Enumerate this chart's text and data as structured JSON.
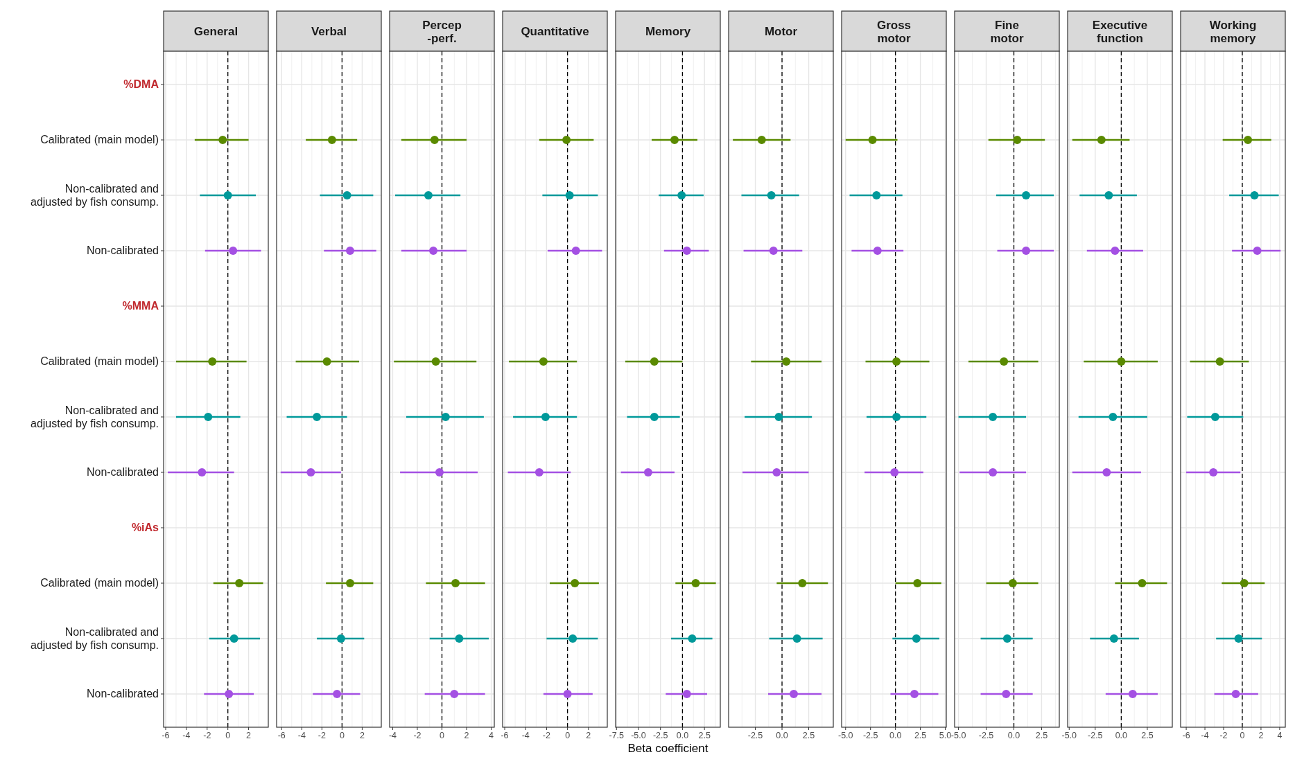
{
  "chart_data": [
    {
      "type": "scatter",
      "orientation": "horizontal",
      "title": "General",
      "categories": [
        "%DMA",
        "Calibrated (main model)",
        "Non-calibrated and\nadjusted by fish consump.",
        "Non-calibrated",
        "%MMA",
        "Calibrated (main model)",
        "Non-calibrated and\nadjusted by fish consump.",
        "Non-calibrated",
        "%iAs",
        "Calibrated (main model)",
        "Non-calibrated and\nadjusted by fish consump.",
        "Non-calibrated"
      ],
      "xlim": [
        -6.2,
        3.9
      ],
      "xticks": [
        -6,
        -4,
        -2,
        0,
        2
      ],
      "grid": true,
      "marker": "circle",
      "ref_lines": [
        {
          "axis": "x",
          "value": 0,
          "line_style": "dashed"
        }
      ],
      "series": [
        {
          "color": "#5a8a00",
          "values": [
            null,
            -0.5,
            null,
            null,
            null,
            -1.5,
            null,
            null,
            null,
            1.1,
            null,
            null
          ],
          "errors": [
            null,
            [
              -3.2,
              2.0
            ],
            null,
            null,
            null,
            [
              -5.0,
              1.8
            ],
            null,
            null,
            null,
            [
              -1.4,
              3.4
            ],
            null,
            null
          ]
        },
        {
          "color": "#00999a",
          "values": [
            null,
            null,
            0.0,
            null,
            null,
            null,
            -1.9,
            null,
            null,
            null,
            0.6,
            null
          ],
          "errors": [
            null,
            null,
            [
              -2.7,
              2.7
            ],
            null,
            null,
            null,
            [
              -5.0,
              1.2
            ],
            null,
            null,
            null,
            [
              -1.8,
              3.1
            ],
            null
          ]
        },
        {
          "color": "#a450e3",
          "values": [
            null,
            null,
            null,
            0.5,
            null,
            null,
            null,
            -2.5,
            null,
            null,
            null,
            0.1
          ],
          "errors": [
            null,
            null,
            null,
            [
              -2.2,
              3.2
            ],
            null,
            null,
            null,
            [
              -5.8,
              0.6
            ],
            null,
            null,
            null,
            [
              -2.3,
              2.5
            ]
          ]
        }
      ]
    },
    {
      "type": "scatter",
      "orientation": "horizontal",
      "title": "Verbal",
      "tick_labels": "x",
      "xlim": [
        -6.5,
        3.9
      ],
      "xticks": [
        -6,
        -4,
        -2,
        0,
        2
      ],
      "grid": true,
      "marker": "circle",
      "ref_lines": [
        {
          "axis": "x",
          "value": 0,
          "line_style": "dashed"
        }
      ],
      "series": [
        {
          "color": "#5a8a00",
          "values": [
            null,
            -1.0,
            null,
            null,
            null,
            -1.5,
            null,
            null,
            null,
            0.8,
            null,
            null
          ],
          "errors": [
            null,
            [
              -3.6,
              1.5
            ],
            null,
            null,
            null,
            [
              -4.6,
              1.7
            ],
            null,
            null,
            null,
            [
              -1.6,
              3.1
            ],
            null,
            null
          ]
        },
        {
          "color": "#00999a",
          "values": [
            null,
            null,
            0.5,
            null,
            null,
            null,
            -2.5,
            null,
            null,
            null,
            -0.1,
            null
          ],
          "errors": [
            null,
            null,
            [
              -2.2,
              3.1
            ],
            null,
            null,
            null,
            [
              -5.5,
              0.5
            ],
            null,
            null,
            null,
            [
              -2.5,
              2.2
            ],
            null
          ]
        },
        {
          "color": "#a450e3",
          "values": [
            null,
            null,
            null,
            0.8,
            null,
            null,
            null,
            -3.1,
            null,
            null,
            null,
            -0.5
          ],
          "errors": [
            null,
            null,
            null,
            [
              -1.8,
              3.4
            ],
            null,
            null,
            null,
            [
              -6.1,
              -0.1
            ],
            null,
            null,
            null,
            [
              -2.9,
              1.8
            ]
          ]
        }
      ]
    },
    {
      "type": "scatter",
      "orientation": "horizontal",
      "title": "Percep\n-perf.",
      "tick_labels": "x",
      "xlim": [
        -4.25,
        4.25
      ],
      "xticks": [
        -4,
        -2,
        0,
        2,
        4
      ],
      "grid": true,
      "marker": "circle",
      "ref_lines": [
        {
          "axis": "x",
          "value": 0,
          "line_style": "dashed"
        }
      ],
      "series": [
        {
          "color": "#5a8a00",
          "values": [
            null,
            -0.6,
            null,
            null,
            null,
            -0.5,
            null,
            null,
            null,
            1.1,
            null,
            null
          ],
          "errors": [
            null,
            [
              -3.3,
              2.0
            ],
            null,
            null,
            null,
            [
              -3.9,
              2.8
            ],
            null,
            null,
            null,
            [
              -1.3,
              3.5
            ],
            null,
            null
          ]
        },
        {
          "color": "#00999a",
          "values": [
            null,
            null,
            -1.1,
            null,
            null,
            null,
            0.3,
            null,
            null,
            null,
            1.4,
            null
          ],
          "errors": [
            null,
            null,
            [
              -3.8,
              1.5
            ],
            null,
            null,
            null,
            [
              -2.9,
              3.4
            ],
            null,
            null,
            null,
            [
              -1.0,
              3.8
            ],
            null
          ]
        },
        {
          "color": "#a450e3",
          "values": [
            null,
            null,
            null,
            -0.7,
            null,
            null,
            null,
            -0.2,
            null,
            null,
            null,
            1.0
          ],
          "errors": [
            null,
            null,
            null,
            [
              -3.3,
              2.0
            ],
            null,
            null,
            null,
            [
              -3.4,
              2.9
            ],
            null,
            null,
            null,
            [
              -1.4,
              3.5
            ]
          ]
        }
      ]
    },
    {
      "type": "scatter",
      "orientation": "horizontal",
      "title": "Quantitative",
      "tick_labels": "x",
      "xlim": [
        -6.2,
        3.8
      ],
      "xticks": [
        -6,
        -4,
        -2,
        0,
        2
      ],
      "grid": true,
      "marker": "circle",
      "ref_lines": [
        {
          "axis": "x",
          "value": 0,
          "line_style": "dashed"
        }
      ],
      "series": [
        {
          "color": "#5a8a00",
          "values": [
            null,
            -0.1,
            null,
            null,
            null,
            -2.3,
            null,
            null,
            null,
            0.7,
            null,
            null
          ],
          "errors": [
            null,
            [
              -2.7,
              2.5
            ],
            null,
            null,
            null,
            [
              -5.6,
              0.9
            ],
            null,
            null,
            null,
            [
              -1.7,
              3.0
            ],
            null,
            null
          ]
        },
        {
          "color": "#00999a",
          "values": [
            null,
            null,
            0.2,
            null,
            null,
            null,
            -2.1,
            null,
            null,
            null,
            0.5,
            null
          ],
          "errors": [
            null,
            null,
            [
              -2.4,
              2.9
            ],
            null,
            null,
            null,
            [
              -5.2,
              0.9
            ],
            null,
            null,
            null,
            [
              -2.0,
              2.9
            ],
            null
          ]
        },
        {
          "color": "#a450e3",
          "values": [
            null,
            null,
            null,
            0.8,
            null,
            null,
            null,
            -2.7,
            null,
            null,
            null,
            0.0
          ],
          "errors": [
            null,
            null,
            null,
            [
              -1.9,
              3.3
            ],
            null,
            null,
            null,
            [
              -5.7,
              0.3
            ],
            null,
            null,
            null,
            [
              -2.3,
              2.4
            ]
          ]
        }
      ]
    },
    {
      "type": "scatter",
      "orientation": "horizontal",
      "title": "Memory",
      "xlabel": "Beta coefficient",
      "tick_labels": "x",
      "xlim": [
        -7.6,
        4.3
      ],
      "xticks": [
        {
          "value": -7.5,
          "label": "-7.5"
        },
        {
          "value": -5,
          "label": "-5.0"
        },
        {
          "value": -2.5,
          "label": "-2.5"
        },
        {
          "value": 0,
          "label": "0.0"
        },
        {
          "value": 2.5,
          "label": "2.5"
        }
      ],
      "grid": true,
      "marker": "circle",
      "ref_lines": [
        {
          "axis": "x",
          "value": 0,
          "line_style": "dashed"
        }
      ],
      "series": [
        {
          "color": "#5a8a00",
          "values": [
            null,
            -0.9,
            null,
            null,
            null,
            -3.2,
            null,
            null,
            null,
            1.5,
            null,
            null
          ],
          "errors": [
            null,
            [
              -3.5,
              1.7
            ],
            null,
            null,
            null,
            [
              -6.5,
              0.0
            ],
            null,
            null,
            null,
            [
              -0.8,
              3.8
            ],
            null,
            null
          ]
        },
        {
          "color": "#00999a",
          "values": [
            null,
            null,
            -0.1,
            null,
            null,
            null,
            -3.2,
            null,
            null,
            null,
            1.1,
            null
          ],
          "errors": [
            null,
            null,
            [
              -2.7,
              2.4
            ],
            null,
            null,
            null,
            [
              -6.3,
              -0.3
            ],
            null,
            null,
            null,
            [
              -1.3,
              3.4
            ],
            null
          ]
        },
        {
          "color": "#a450e3",
          "values": [
            null,
            null,
            null,
            0.5,
            null,
            null,
            null,
            -3.9,
            null,
            null,
            null,
            0.5
          ],
          "errors": [
            null,
            null,
            null,
            [
              -2.1,
              3.0
            ],
            null,
            null,
            null,
            [
              -7.0,
              -0.9
            ],
            null,
            null,
            null,
            [
              -1.9,
              2.8
            ]
          ]
        }
      ]
    },
    {
      "type": "scatter",
      "orientation": "horizontal",
      "title": "Motor",
      "tick_labels": "x",
      "xlim": [
        -5.0,
        4.8
      ],
      "xticks": [
        {
          "value": -2.5,
          "label": "-2.5"
        },
        {
          "value": 0,
          "label": "0.0"
        },
        {
          "value": 2.5,
          "label": "2.5"
        }
      ],
      "grid": true,
      "marker": "circle",
      "ref_lines": [
        {
          "axis": "x",
          "value": 0,
          "line_style": "dashed"
        }
      ],
      "series": [
        {
          "color": "#5a8a00",
          "values": [
            null,
            -1.9,
            null,
            null,
            null,
            0.4,
            null,
            null,
            null,
            1.9,
            null,
            null
          ],
          "errors": [
            null,
            [
              -4.6,
              0.8
            ],
            null,
            null,
            null,
            [
              -2.9,
              3.7
            ],
            null,
            null,
            null,
            [
              -0.5,
              4.3
            ],
            null,
            null
          ]
        },
        {
          "color": "#00999a",
          "values": [
            null,
            null,
            -1.0,
            null,
            null,
            null,
            -0.3,
            null,
            null,
            null,
            1.4,
            null
          ],
          "errors": [
            null,
            null,
            [
              -3.8,
              1.6
            ],
            null,
            null,
            null,
            [
              -3.5,
              2.8
            ],
            null,
            null,
            null,
            [
              -1.2,
              3.8
            ],
            null
          ]
        },
        {
          "color": "#a450e3",
          "values": [
            null,
            null,
            null,
            -0.8,
            null,
            null,
            null,
            -0.5,
            null,
            null,
            null,
            1.1
          ],
          "errors": [
            null,
            null,
            null,
            [
              -3.6,
              1.9
            ],
            null,
            null,
            null,
            [
              -3.7,
              2.5
            ],
            null,
            null,
            null,
            [
              -1.3,
              3.7
            ]
          ]
        }
      ]
    },
    {
      "type": "scatter",
      "orientation": "horizontal",
      "title": "Gross\nmotor",
      "tick_labels": "x",
      "xlim": [
        -5.4,
        5.1
      ],
      "xticks": [
        {
          "value": -5,
          "label": "-5.0"
        },
        {
          "value": -2.5,
          "label": "-2.5"
        },
        {
          "value": 0,
          "label": "0.0"
        },
        {
          "value": 2.5,
          "label": "2.5"
        },
        {
          "value": 5,
          "label": "5.0"
        }
      ],
      "grid": true,
      "marker": "circle",
      "ref_lines": [
        {
          "axis": "x",
          "value": 0,
          "line_style": "dashed"
        }
      ],
      "series": [
        {
          "color": "#5a8a00",
          "values": [
            null,
            -2.3,
            null,
            null,
            null,
            0.1,
            null,
            null,
            null,
            2.2,
            null,
            null
          ],
          "errors": [
            null,
            [
              -5.0,
              0.2
            ],
            null,
            null,
            null,
            [
              -3.0,
              3.4
            ],
            null,
            null,
            null,
            [
              0.0,
              4.6
            ],
            null,
            null
          ]
        },
        {
          "color": "#00999a",
          "values": [
            null,
            null,
            -1.9,
            null,
            null,
            null,
            0.1,
            null,
            null,
            null,
            2.1,
            null
          ],
          "errors": [
            null,
            null,
            [
              -4.6,
              0.7
            ],
            null,
            null,
            null,
            [
              -2.9,
              3.1
            ],
            null,
            null,
            null,
            [
              -0.3,
              4.4
            ],
            null
          ]
        },
        {
          "color": "#a450e3",
          "values": [
            null,
            null,
            null,
            -1.8,
            null,
            null,
            null,
            -0.1,
            null,
            null,
            null,
            1.9
          ],
          "errors": [
            null,
            null,
            null,
            [
              -4.4,
              0.8
            ],
            null,
            null,
            null,
            [
              -3.1,
              2.8
            ],
            null,
            null,
            null,
            [
              -0.5,
              4.3
            ]
          ]
        }
      ]
    },
    {
      "type": "scatter",
      "orientation": "horizontal",
      "title": "Fine\nmotor",
      "tick_labels": "x",
      "xlim": [
        -5.35,
        4.1
      ],
      "xticks": [
        {
          "value": -5,
          "label": "-5.0"
        },
        {
          "value": -2.5,
          "label": "-2.5"
        },
        {
          "value": 0,
          "label": "0.0"
        },
        {
          "value": 2.5,
          "label": "2.5"
        }
      ],
      "grid": true,
      "marker": "circle",
      "ref_lines": [
        {
          "axis": "x",
          "value": 0,
          "line_style": "dashed"
        }
      ],
      "series": [
        {
          "color": "#5a8a00",
          "values": [
            null,
            0.3,
            null,
            null,
            null,
            -0.9,
            null,
            null,
            null,
            -0.1,
            null,
            null
          ],
          "errors": [
            null,
            [
              -2.3,
              2.8
            ],
            null,
            null,
            null,
            [
              -4.1,
              2.2
            ],
            null,
            null,
            null,
            [
              -2.5,
              2.2
            ],
            null,
            null
          ]
        },
        {
          "color": "#00999a",
          "values": [
            null,
            null,
            1.1,
            null,
            null,
            null,
            -1.9,
            null,
            null,
            null,
            -0.6,
            null
          ],
          "errors": [
            null,
            null,
            [
              -1.6,
              3.6
            ],
            null,
            null,
            null,
            [
              -5.0,
              1.1
            ],
            null,
            null,
            null,
            [
              -3.0,
              1.7
            ],
            null
          ]
        },
        {
          "color": "#a450e3",
          "values": [
            null,
            null,
            null,
            1.1,
            null,
            null,
            null,
            -1.9,
            null,
            null,
            null,
            -0.7
          ],
          "errors": [
            null,
            null,
            null,
            [
              -1.5,
              3.6
            ],
            null,
            null,
            null,
            [
              -4.9,
              1.1
            ],
            null,
            null,
            null,
            [
              -3.0,
              1.7
            ]
          ]
        }
      ]
    },
    {
      "type": "scatter",
      "orientation": "horizontal",
      "title": "Executive\nfunction",
      "tick_labels": "x",
      "xlim": [
        -5.15,
        4.9
      ],
      "xticks": [
        {
          "value": -5,
          "label": "-5.0"
        },
        {
          "value": -2.5,
          "label": "-2.5"
        },
        {
          "value": 0,
          "label": "0.0"
        },
        {
          "value": 2.5,
          "label": "2.5"
        }
      ],
      "grid": true,
      "marker": "circle",
      "ref_lines": [
        {
          "axis": "x",
          "value": 0,
          "line_style": "dashed"
        }
      ],
      "series": [
        {
          "color": "#5a8a00",
          "values": [
            null,
            -1.9,
            null,
            null,
            null,
            0.0,
            null,
            null,
            null,
            2.0,
            null,
            null
          ],
          "errors": [
            null,
            [
              -4.7,
              0.8
            ],
            null,
            null,
            null,
            [
              -3.6,
              3.5
            ],
            null,
            null,
            null,
            [
              -0.6,
              4.4
            ],
            null,
            null
          ]
        },
        {
          "color": "#00999a",
          "values": [
            null,
            null,
            -1.2,
            null,
            null,
            null,
            -0.8,
            null,
            null,
            null,
            -0.7,
            null
          ],
          "errors": [
            null,
            null,
            [
              -4.0,
              1.5
            ],
            null,
            null,
            null,
            [
              -4.1,
              2.5
            ],
            null,
            null,
            null,
            [
              -3.0,
              1.7
            ],
            null
          ]
        },
        {
          "color": "#a450e3",
          "values": [
            null,
            null,
            null,
            -0.6,
            null,
            null,
            null,
            -1.4,
            null,
            null,
            null,
            1.1
          ],
          "errors": [
            null,
            null,
            null,
            [
              -3.3,
              2.1
            ],
            null,
            null,
            null,
            [
              -4.7,
              1.9
            ],
            null,
            null,
            null,
            [
              -1.5,
              3.5
            ]
          ]
        }
      ]
    },
    {
      "type": "scatter",
      "orientation": "horizontal",
      "title": "Working\nmemory",
      "tick_labels": "x",
      "xlim": [
        -6.6,
        4.6
      ],
      "xticks": [
        -6,
        -4,
        -2,
        0,
        2,
        4
      ],
      "grid": true,
      "marker": "circle",
      "ref_lines": [
        {
          "axis": "x",
          "value": 0,
          "line_style": "dashed"
        }
      ],
      "series": [
        {
          "color": "#5a8a00",
          "values": [
            null,
            0.6,
            null,
            null,
            null,
            -2.4,
            null,
            null,
            null,
            0.2,
            null,
            null
          ],
          "errors": [
            null,
            [
              -2.1,
              3.1
            ],
            null,
            null,
            null,
            [
              -5.6,
              0.7
            ],
            null,
            null,
            null,
            [
              -2.2,
              2.4
            ],
            null,
            null
          ]
        },
        {
          "color": "#00999a",
          "values": [
            null,
            null,
            1.3,
            null,
            null,
            null,
            -2.9,
            null,
            null,
            null,
            -0.4,
            null
          ],
          "errors": [
            null,
            null,
            [
              -1.4,
              3.9
            ],
            null,
            null,
            null,
            [
              -5.9,
              0.1
            ],
            null,
            null,
            null,
            [
              -2.8,
              2.1
            ],
            null
          ]
        },
        {
          "color": "#a450e3",
          "values": [
            null,
            null,
            null,
            1.6,
            null,
            null,
            null,
            -3.1,
            null,
            null,
            null,
            -0.7
          ],
          "errors": [
            null,
            null,
            null,
            [
              -1.1,
              4.1
            ],
            null,
            null,
            null,
            [
              -6.0,
              -0.2
            ],
            null,
            null,
            null,
            [
              -3.0,
              1.7
            ]
          ]
        }
      ]
    }
  ]
}
